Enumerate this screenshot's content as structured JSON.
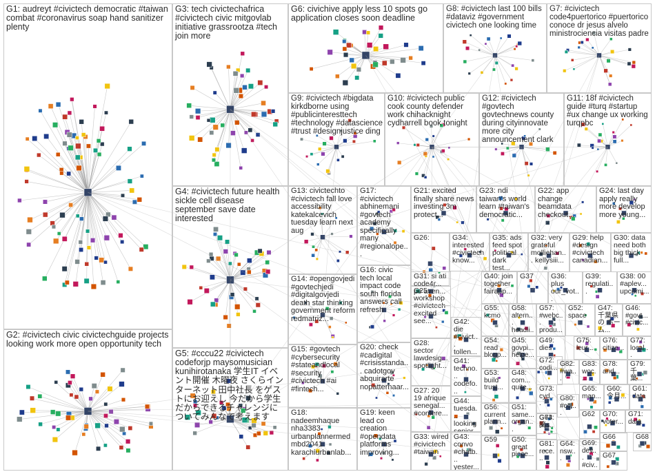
{
  "groups": [
    {
      "id": "G1",
      "label": "G1: audreyt #civictech democratic #taiwan combat #coronavirus soap hand sanitizer plenty"
    },
    {
      "id": "G2",
      "label": "G2: #civictech civic civictechguide projects looking work more open opportunity tech"
    },
    {
      "id": "G3",
      "label": "G3: tech civictechafrica #civictech civic mitgovlab initiative grassrootza #tech join more"
    },
    {
      "id": "G4",
      "label": "G4: #civictech future health sickle cell disease september save date interested"
    },
    {
      "id": "G5",
      "label": "G5: #cccu22 #civictech codeforjp maysomusician kunihirotanaka 学生IT イベント開催 木曜夜 さくらインターネット田中社長 をゲストにお迎えし 今だから学生だからできるチャレンジについてみんなで考えます"
    },
    {
      "id": "G6",
      "label": "G6: civichive apply less 10 spots go application closes soon deadline"
    },
    {
      "id": "G7",
      "label": "G7: #civictech code4puertorico #puertorico conoce dr jesus alvelo ministrociencia visitas padre"
    },
    {
      "id": "G8",
      "label": "G8: #civictech last 100 bills #dataviz #government civictech one looking time"
    },
    {
      "id": "G9",
      "label": "G9: #civictech #bigdata kirkdborne using #publicinteresttech #technology #datascience #trust #designjustice ding"
    },
    {
      "id": "G10",
      "label": "G10: #civictech public cook county defender work chihacknight cydharrell book tonight"
    },
    {
      "id": "G11",
      "label": "G11: 18f #civictech guide #turq #startup #ux change ux working turqpbc"
    },
    {
      "id": "G12",
      "label": "G12: #civictech #govtech govtechnews county during cityinnovate more city announcement clark"
    },
    {
      "id": "G13",
      "label": "G13: civictechto #civictech fall love accessibility katekalcevich tuesday learn next aug"
    },
    {
      "id": "G14",
      "label": "G14: #opengovjedi #govtechjedi #digitalgovjedi death star thinking government reform redmatriz..."
    },
    {
      "id": "G15",
      "label": "G15: #govtech #cybersecurity #stateandlocal #security #civictech #ai #fintech..."
    },
    {
      "id": "G16",
      "label": "G16: civic tech local impact code south florida answers call refresh"
    },
    {
      "id": "G17",
      "label": "G17: #civictech abhinemani #govtech academy specifically many #regionalope..."
    },
    {
      "id": "G18",
      "label": "G18: nadeemhaque nha3383 urbanplannermed mbd2041 karachiurbanlab..."
    },
    {
      "id": "G19",
      "label": "G19: keen lead co creation #opendata platforms improving..."
    },
    {
      "id": "G20",
      "label": "G20: check #cadigital #crisisstanda... cadotgov abquirarte nopatternaar..."
    },
    {
      "id": "G21",
      "label": "G21: excited finally share news investing 3m protect..."
    },
    {
      "id": "G22",
      "label": "G22: app change beamdata checkout..."
    },
    {
      "id": "G23",
      "label": "G23: ndi taiwan's world learn #taiwan's democratic..."
    },
    {
      "id": "G24",
      "label": "G24: last day apply really more develop more young..."
    },
    {
      "id": "G25",
      "label": "G25: workshop #civictech excited see..."
    },
    {
      "id": "G26",
      "label": "G26:"
    },
    {
      "id": "G27",
      "label": "G27: 20 19 afrique senegal... #confere..."
    },
    {
      "id": "G28",
      "label": "G28: sector lawdesig... spotlight..."
    },
    {
      "id": "G29",
      "label": "G29: help #design #civictech canadian..."
    },
    {
      "id": "G30",
      "label": "G30: data need both big thick full..."
    },
    {
      "id": "G31",
      "label": "G31: si ati code4r... pe aven..."
    },
    {
      "id": "G32",
      "label": "G32: very grateful molliehan... kellysiii..."
    },
    {
      "id": "G33",
      "label": "G33: wired #civictech #taiwan"
    },
    {
      "id": "G34",
      "label": "G34: interested #civictech know..."
    },
    {
      "id": "G35",
      "label": "G35: ads feed spot political dark test..."
    },
    {
      "id": "G36",
      "label": "G36: plus our_vot..."
    },
    {
      "id": "G37",
      "label": "G37"
    },
    {
      "id": "G38",
      "label": "G38: 00 #aplev... upcomi..."
    },
    {
      "id": "G39",
      "label": "G39: regulati..."
    },
    {
      "id": "G40",
      "label": "G40: join together fairapp..."
    },
    {
      "id": "G41",
      "label": "G41: techno... codefo... partne..."
    },
    {
      "id": "G42",
      "label": "G42: die #civict... tollen..."
    },
    {
      "id": "G43",
      "label": "G43: convo #chatb... yester..."
    },
    {
      "id": "G44",
      "label": "G44: tuesda... looking senior..."
    },
    {
      "id": "G45",
      "label": "G45: govpi... helpe..."
    },
    {
      "id": "G46",
      "label": "G46: #govt... #civic..."
    },
    {
      "id": "G47",
      "label": "G47: 千葉県の ホーム..."
    },
    {
      "id": "G48",
      "label": "G48: com... quite..."
    },
    {
      "id": "G49",
      "label": "G49: dies"
    },
    {
      "id": "G50",
      "label": "G50: great piece..."
    },
    {
      "id": "G51",
      "label": "G51: same... organ..."
    },
    {
      "id": "G52",
      "label": "G52: space"
    },
    {
      "id": "G53",
      "label": "G53: build trust..."
    },
    {
      "id": "G54",
      "label": "G54: read blogp..."
    },
    {
      "id": "G55",
      "label": "G55: kcmo"
    },
    {
      "id": "G56",
      "label": "G56: current plann..."
    },
    {
      "id": "G57",
      "label": "G57: #webc... produ..."
    },
    {
      "id": "G58",
      "label": "G58: altern... headli..."
    },
    {
      "id": "G59",
      "label": "G59"
    },
    {
      "id": "G60",
      "label": "G60: 今月..."
    },
    {
      "id": "G61",
      "label": "G61: data"
    },
    {
      "id": "G62",
      "label": "G62"
    },
    {
      "id": "G63",
      "label": "G63: 笑..."
    },
    {
      "id": "G64",
      "label": "G64: nsw..."
    },
    {
      "id": "G65",
      "label": "G65: man..."
    },
    {
      "id": "G66",
      "label": "G66"
    },
    {
      "id": "G67",
      "label": "G67"
    },
    {
      "id": "G68",
      "label": "G68"
    },
    {
      "id": "G69",
      "label": "G69: dev... #civ..."
    },
    {
      "id": "G70",
      "label": "G70: voter..."
    },
    {
      "id": "G71",
      "label": "G71: data"
    },
    {
      "id": "G72",
      "label": "G72: codi..."
    },
    {
      "id": "G73",
      "label": "G73: cyd..."
    },
    {
      "id": "G74",
      "label": "G74: ass..."
    },
    {
      "id": "G75",
      "label": "G75: leur..."
    },
    {
      "id": "G76",
      "label": "G76: citize..."
    },
    {
      "id": "G77",
      "label": "G77: local..."
    },
    {
      "id": "G78",
      "label": "G78: and..."
    },
    {
      "id": "G79",
      "label": "G79: 千葉..."
    },
    {
      "id": "G80",
      "label": "G80: #col..."
    },
    {
      "id": "G81",
      "label": "G81: rece..."
    },
    {
      "id": "G82",
      "label": "G82: #wa..."
    },
    {
      "id": "G83",
      "label": "G83: woc..."
    }
  ],
  "node_colors": [
    "#1f3c8c",
    "#2b6cb0",
    "#c0392b",
    "#27ae60",
    "#8e44ad",
    "#e67e22",
    "#16a085",
    "#d35400",
    "#7f8c8d",
    "#2c3e50",
    "#c2185b",
    "#f1c40f"
  ],
  "edge_color": "#9a9a9a"
}
